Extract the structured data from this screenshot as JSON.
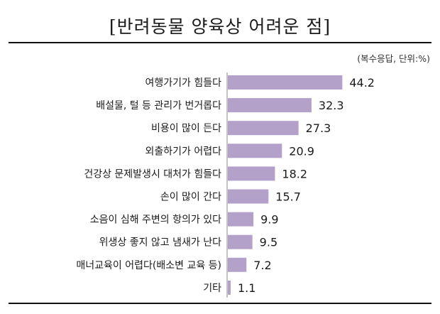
{
  "header": {
    "title": "[반려동물 양육상 어려운 점]",
    "unit_note": "(복수응답, 단위:%)"
  },
  "colors": {
    "bar": "#b3a1ca"
  },
  "chart_data": {
    "type": "bar",
    "orientation": "horizontal",
    "title": "[반려동물 양육상 어려운 점]",
    "subtitle": "(복수응답, 단위:%)",
    "categories": [
      "여행가기가 힘들다",
      "배설물, 털 등 관리가 번거롭다",
      "비용이 많이 든다",
      "외출하기가 어렵다",
      "건강상 문제발생시 대처가 힘들다",
      "손이 많이 간다",
      "소음이 심해 주변의 항의가 있다",
      "위생상 좋지 않고 냄새가 난다",
      "매너교육이 어렵다(배소변 교육 등)",
      "기타"
    ],
    "values": [
      44.2,
      32.3,
      27.3,
      20.9,
      18.2,
      15.7,
      9.9,
      9.5,
      7.2,
      1.1
    ],
    "value_labels": [
      "44.2",
      "32.3",
      "27.3",
      "20.9",
      "18.2",
      "15.7",
      "9.9",
      "9.5",
      "7.2",
      "1.1"
    ],
    "xlim": [
      0,
      50
    ],
    "grid": false,
    "legend": "none"
  }
}
